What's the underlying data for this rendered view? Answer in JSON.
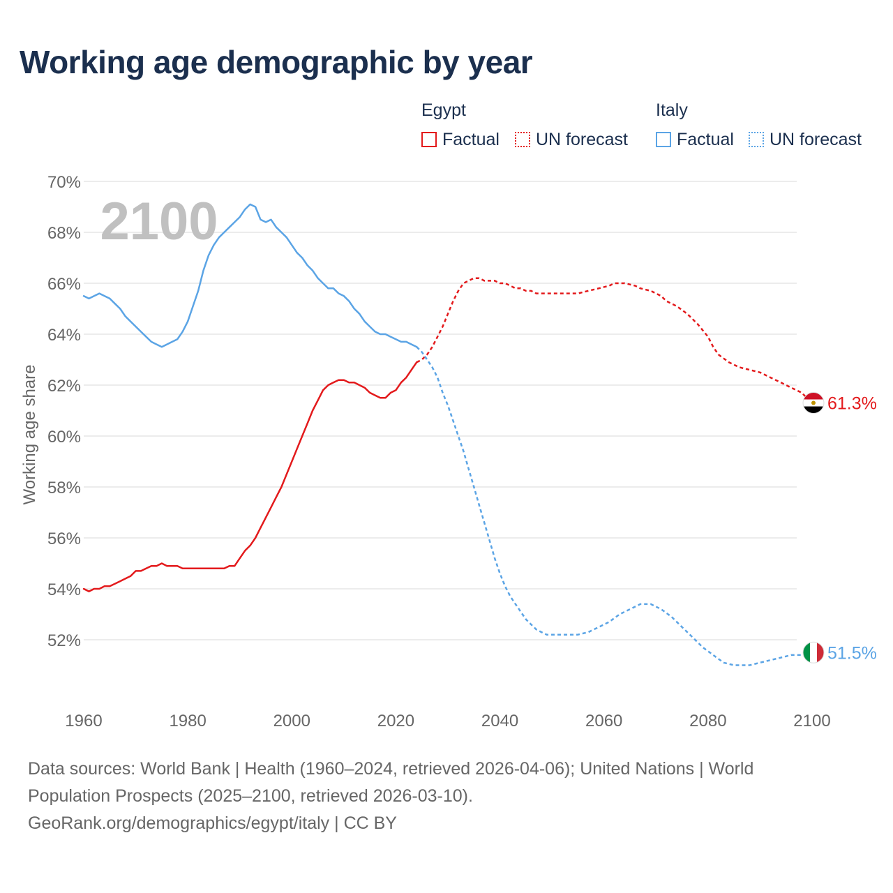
{
  "chart_data": {
    "type": "line",
    "title": "Working age demographic by year",
    "ylabel": "Working age share",
    "xlabel": "",
    "xlim": [
      1960,
      2100
    ],
    "ylim": [
      50,
      70
    ],
    "x_ticks": [
      "1960",
      "1980",
      "2000",
      "2020",
      "2040",
      "2060",
      "2080",
      "2100"
    ],
    "x_tick_values": [
      1960,
      1980,
      2000,
      2020,
      2040,
      2060,
      2080,
      2100
    ],
    "y_ticks": [
      "52%",
      "54%",
      "56%",
      "58%",
      "60%",
      "62%",
      "64%",
      "66%",
      "68%",
      "70%"
    ],
    "y_tick_values": [
      52,
      54,
      56,
      58,
      60,
      62,
      64,
      66,
      68,
      70
    ],
    "grid": true,
    "year_label": "2100",
    "forecast_start": 2024,
    "series": [
      {
        "name": "Egypt",
        "color": "#e31a1c",
        "end_label": "61.3%",
        "factual": [
          [
            1960,
            54.0
          ],
          [
            1961,
            53.9
          ],
          [
            1962,
            54.0
          ],
          [
            1963,
            54.0
          ],
          [
            1964,
            54.1
          ],
          [
            1965,
            54.1
          ],
          [
            1966,
            54.2
          ],
          [
            1967,
            54.3
          ],
          [
            1968,
            54.4
          ],
          [
            1969,
            54.5
          ],
          [
            1970,
            54.7
          ],
          [
            1971,
            54.7
          ],
          [
            1972,
            54.8
          ],
          [
            1973,
            54.9
          ],
          [
            1974,
            54.9
          ],
          [
            1975,
            55.0
          ],
          [
            1976,
            54.9
          ],
          [
            1977,
            54.9
          ],
          [
            1978,
            54.9
          ],
          [
            1979,
            54.8
          ],
          [
            1980,
            54.8
          ],
          [
            1982,
            54.8
          ],
          [
            1984,
            54.8
          ],
          [
            1986,
            54.8
          ],
          [
            1987,
            54.8
          ],
          [
            1988,
            54.9
          ],
          [
            1989,
            54.9
          ],
          [
            1990,
            55.2
          ],
          [
            1991,
            55.5
          ],
          [
            1992,
            55.7
          ],
          [
            1993,
            56.0
          ],
          [
            1994,
            56.4
          ],
          [
            1995,
            56.8
          ],
          [
            1996,
            57.2
          ],
          [
            1997,
            57.6
          ],
          [
            1998,
            58.0
          ],
          [
            1999,
            58.5
          ],
          [
            2000,
            59.0
          ],
          [
            2001,
            59.5
          ],
          [
            2002,
            60.0
          ],
          [
            2003,
            60.5
          ],
          [
            2004,
            61.0
          ],
          [
            2005,
            61.4
          ],
          [
            2006,
            61.8
          ],
          [
            2007,
            62.0
          ],
          [
            2008,
            62.1
          ],
          [
            2009,
            62.2
          ],
          [
            2010,
            62.2
          ],
          [
            2011,
            62.1
          ],
          [
            2012,
            62.1
          ],
          [
            2013,
            62.0
          ],
          [
            2014,
            61.9
          ],
          [
            2015,
            61.7
          ],
          [
            2016,
            61.6
          ],
          [
            2017,
            61.5
          ],
          [
            2018,
            61.5
          ],
          [
            2019,
            61.7
          ],
          [
            2020,
            61.8
          ],
          [
            2021,
            62.1
          ],
          [
            2022,
            62.3
          ],
          [
            2023,
            62.6
          ],
          [
            2024,
            62.9
          ]
        ],
        "forecast": [
          [
            2024,
            62.9
          ],
          [
            2025,
            63.0
          ],
          [
            2026,
            63.2
          ],
          [
            2027,
            63.5
          ],
          [
            2028,
            63.9
          ],
          [
            2029,
            64.3
          ],
          [
            2030,
            64.8
          ],
          [
            2031,
            65.3
          ],
          [
            2032,
            65.7
          ],
          [
            2033,
            66.0
          ],
          [
            2034,
            66.1
          ],
          [
            2035,
            66.2
          ],
          [
            2036,
            66.2
          ],
          [
            2037,
            66.1
          ],
          [
            2038,
            66.1
          ],
          [
            2039,
            66.1
          ],
          [
            2040,
            66.0
          ],
          [
            2041,
            66.0
          ],
          [
            2042,
            65.9
          ],
          [
            2043,
            65.8
          ],
          [
            2044,
            65.8
          ],
          [
            2045,
            65.7
          ],
          [
            2046,
            65.7
          ],
          [
            2047,
            65.6
          ],
          [
            2050,
            65.6
          ],
          [
            2055,
            65.6
          ],
          [
            2057,
            65.7
          ],
          [
            2059,
            65.8
          ],
          [
            2061,
            65.9
          ],
          [
            2062,
            66.0
          ],
          [
            2064,
            66.0
          ],
          [
            2066,
            65.9
          ],
          [
            2067,
            65.8
          ],
          [
            2069,
            65.7
          ],
          [
            2071,
            65.5
          ],
          [
            2072,
            65.3
          ],
          [
            2074,
            65.1
          ],
          [
            2076,
            64.8
          ],
          [
            2078,
            64.4
          ],
          [
            2080,
            63.9
          ],
          [
            2081,
            63.5
          ],
          [
            2082,
            63.2
          ],
          [
            2084,
            62.9
          ],
          [
            2086,
            62.7
          ],
          [
            2088,
            62.6
          ],
          [
            2090,
            62.5
          ],
          [
            2092,
            62.3
          ],
          [
            2094,
            62.1
          ],
          [
            2096,
            61.9
          ],
          [
            2098,
            61.7
          ],
          [
            2099,
            61.5
          ],
          [
            2100,
            61.3
          ],
          [
            2101,
            61.3
          ]
        ]
      },
      {
        "name": "Italy",
        "color": "#5ba4e5",
        "end_label": "51.5%",
        "factual": [
          [
            1960,
            65.5
          ],
          [
            1961,
            65.4
          ],
          [
            1962,
            65.5
          ],
          [
            1963,
            65.6
          ],
          [
            1964,
            65.5
          ],
          [
            1965,
            65.4
          ],
          [
            1966,
            65.2
          ],
          [
            1967,
            65.0
          ],
          [
            1968,
            64.7
          ],
          [
            1969,
            64.5
          ],
          [
            1970,
            64.3
          ],
          [
            1971,
            64.1
          ],
          [
            1972,
            63.9
          ],
          [
            1973,
            63.7
          ],
          [
            1974,
            63.6
          ],
          [
            1975,
            63.5
          ],
          [
            1976,
            63.6
          ],
          [
            1977,
            63.7
          ],
          [
            1978,
            63.8
          ],
          [
            1979,
            64.1
          ],
          [
            1980,
            64.5
          ],
          [
            1981,
            65.1
          ],
          [
            1982,
            65.7
          ],
          [
            1983,
            66.5
          ],
          [
            1984,
            67.1
          ],
          [
            1985,
            67.5
          ],
          [
            1986,
            67.8
          ],
          [
            1987,
            68.0
          ],
          [
            1988,
            68.2
          ],
          [
            1989,
            68.4
          ],
          [
            1990,
            68.6
          ],
          [
            1991,
            68.9
          ],
          [
            1992,
            69.1
          ],
          [
            1993,
            69.0
          ],
          [
            1994,
            68.5
          ],
          [
            1995,
            68.4
          ],
          [
            1996,
            68.5
          ],
          [
            1997,
            68.2
          ],
          [
            1998,
            68.0
          ],
          [
            1999,
            67.8
          ],
          [
            2000,
            67.5
          ],
          [
            2001,
            67.2
          ],
          [
            2002,
            67.0
          ],
          [
            2003,
            66.7
          ],
          [
            2004,
            66.5
          ],
          [
            2005,
            66.2
          ],
          [
            2006,
            66.0
          ],
          [
            2007,
            65.8
          ],
          [
            2008,
            65.8
          ],
          [
            2009,
            65.6
          ],
          [
            2010,
            65.5
          ],
          [
            2011,
            65.3
          ],
          [
            2012,
            65.0
          ],
          [
            2013,
            64.8
          ],
          [
            2014,
            64.5
          ],
          [
            2015,
            64.3
          ],
          [
            2016,
            64.1
          ],
          [
            2017,
            64.0
          ],
          [
            2018,
            64.0
          ],
          [
            2019,
            63.9
          ],
          [
            2020,
            63.8
          ],
          [
            2021,
            63.7
          ],
          [
            2022,
            63.7
          ],
          [
            2023,
            63.6
          ],
          [
            2024,
            63.5
          ]
        ],
        "forecast": [
          [
            2024,
            63.5
          ],
          [
            2025,
            63.3
          ],
          [
            2026,
            63.0
          ],
          [
            2027,
            62.7
          ],
          [
            2028,
            62.3
          ],
          [
            2029,
            61.7
          ],
          [
            2030,
            61.2
          ],
          [
            2031,
            60.6
          ],
          [
            2032,
            60.0
          ],
          [
            2033,
            59.4
          ],
          [
            2034,
            58.7
          ],
          [
            2035,
            58.0
          ],
          [
            2036,
            57.3
          ],
          [
            2037,
            56.6
          ],
          [
            2038,
            55.9
          ],
          [
            2039,
            55.2
          ],
          [
            2040,
            54.6
          ],
          [
            2041,
            54.1
          ],
          [
            2042,
            53.7
          ],
          [
            2043,
            53.4
          ],
          [
            2044,
            53.1
          ],
          [
            2045,
            52.8
          ],
          [
            2046,
            52.6
          ],
          [
            2047,
            52.4
          ],
          [
            2048,
            52.3
          ],
          [
            2049,
            52.2
          ],
          [
            2050,
            52.2
          ],
          [
            2055,
            52.2
          ],
          [
            2057,
            52.3
          ],
          [
            2059,
            52.5
          ],
          [
            2061,
            52.7
          ],
          [
            2063,
            53.0
          ],
          [
            2065,
            53.2
          ],
          [
            2067,
            53.4
          ],
          [
            2069,
            53.4
          ],
          [
            2071,
            53.2
          ],
          [
            2073,
            52.9
          ],
          [
            2075,
            52.5
          ],
          [
            2077,
            52.1
          ],
          [
            2079,
            51.7
          ],
          [
            2081,
            51.4
          ],
          [
            2083,
            51.1
          ],
          [
            2085,
            51.0
          ],
          [
            2088,
            51.0
          ],
          [
            2090,
            51.1
          ],
          [
            2092,
            51.2
          ],
          [
            2094,
            51.3
          ],
          [
            2096,
            51.4
          ],
          [
            2098,
            51.4
          ],
          [
            2100,
            51.5
          ],
          [
            2101,
            51.5
          ]
        ]
      }
    ]
  },
  "legend": {
    "groups": [
      {
        "title": "Egypt",
        "factual_label": "Factual",
        "forecast_label": "UN forecast",
        "color": "#e31a1c"
      },
      {
        "title": "Italy",
        "factual_label": "Factual",
        "forecast_label": "UN forecast",
        "color": "#5ba4e5"
      }
    ]
  },
  "flags": [
    {
      "country": "Egypt",
      "icon": "egypt-flag-icon",
      "colors": [
        "#ce1126",
        "#ffffff",
        "#000000"
      ],
      "emblem_color": "#c09300"
    },
    {
      "country": "Italy",
      "icon": "italy-flag-icon",
      "colors": [
        "#009246",
        "#ffffff",
        "#ce2b37"
      ]
    }
  ],
  "footer": {
    "line1": "Data sources: World Bank | Health (1960–2024, retrieved 2026-04-06); United Nations | World",
    "line2": "Population Prospects (2025–2100, retrieved 2026-03-10).",
    "line3": "GeoRank.org/demographics/egypt/italy | CC BY"
  },
  "colors": {
    "title": "#1b2f4e",
    "grid": "#e6e6e6",
    "axis_text": "#666666",
    "year_watermark": "#c0c0c0"
  }
}
